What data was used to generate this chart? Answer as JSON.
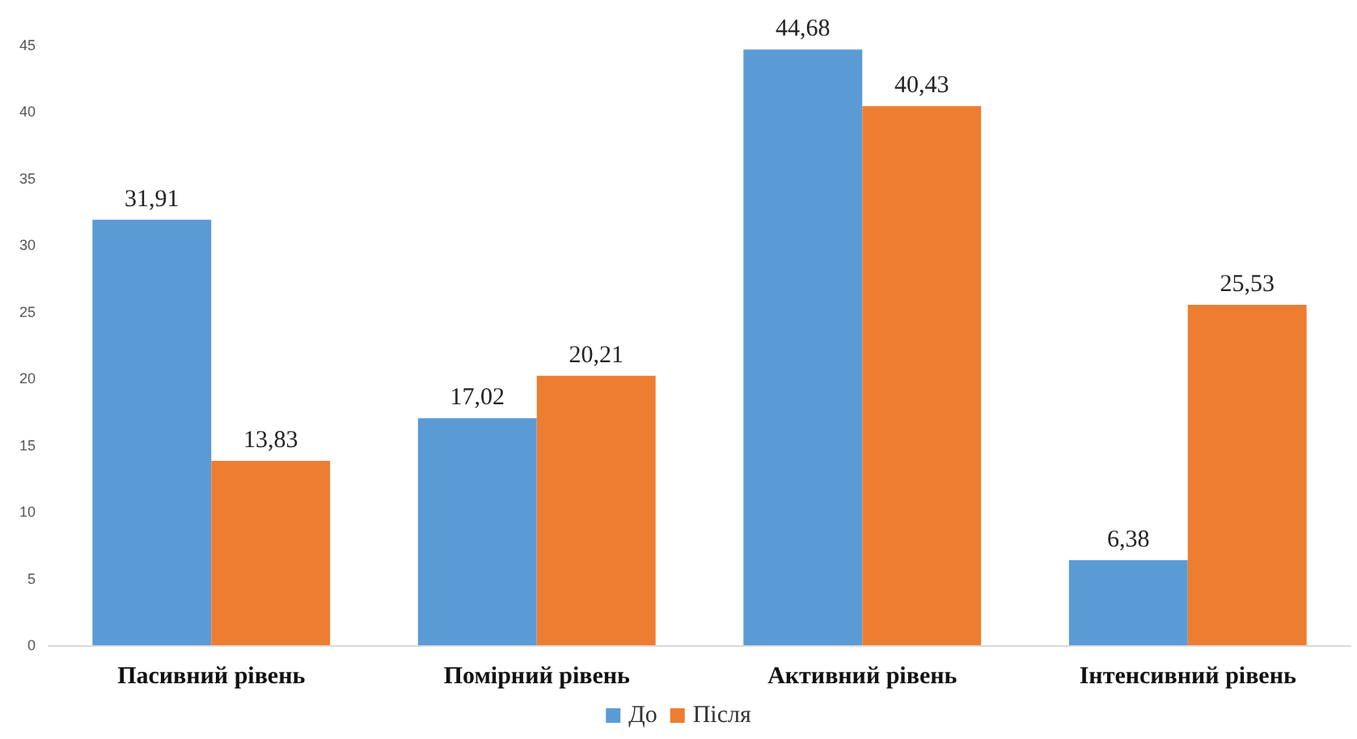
{
  "chart_data": {
    "type": "bar",
    "categories": [
      "Пасивний рівень",
      "Помірний рівень",
      "Активний рівень",
      "Інтенсивний рівень"
    ],
    "series": [
      {
        "name": "До",
        "color": "#5b9bd5",
        "values": [
          31.91,
          17.02,
          44.68,
          6.38
        ],
        "value_labels": [
          "31,91",
          "17,02",
          "44,68",
          "6,38"
        ]
      },
      {
        "name": "Після",
        "color": "#ed7d31",
        "values": [
          13.83,
          20.21,
          40.43,
          25.53
        ],
        "value_labels": [
          "13,83",
          "20,21",
          "40,43",
          "25,53"
        ]
      }
    ],
    "ylim": [
      0,
      45
    ],
    "yticks": [
      0,
      5,
      10,
      15,
      20,
      25,
      30,
      35,
      40,
      45
    ],
    "grid": false,
    "legend": "bottom"
  }
}
